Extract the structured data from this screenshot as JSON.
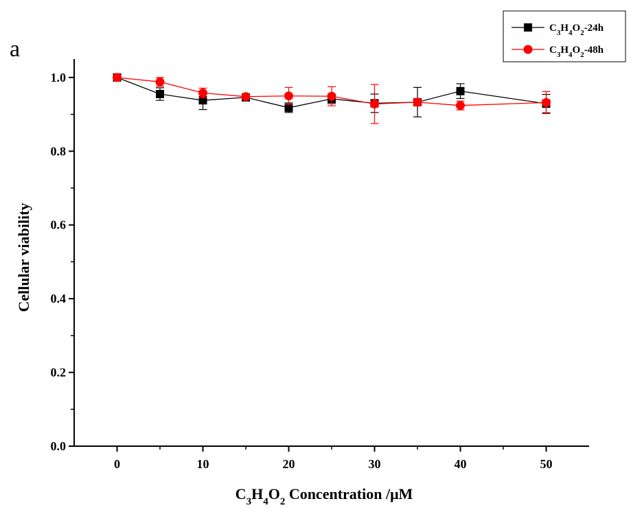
{
  "panel_label": "a",
  "chart_data": {
    "type": "line",
    "title": "",
    "xlabel": {
      "base": "C",
      "parts": [
        [
          "3",
          "H"
        ],
        [
          "4",
          "O"
        ],
        [
          "2",
          " Concentration /μM"
        ]
      ]
    },
    "ylabel": "Cellular viability",
    "xlim": [
      -5,
      55
    ],
    "ylim": [
      0.0,
      1.05
    ],
    "x_ticks": [
      0,
      10,
      20,
      30,
      40,
      50
    ],
    "x_tick_labels": [
      "0",
      "10",
      "20",
      "30",
      "40",
      "50"
    ],
    "y_ticks": [
      0.0,
      0.2,
      0.4,
      0.6,
      0.8,
      1.0
    ],
    "y_tick_labels": [
      "0.0",
      "0.2",
      "0.4",
      "0.6",
      "0.8",
      "1.0"
    ],
    "grid": false,
    "legend_position": "top-right",
    "series": [
      {
        "name": {
          "base": "C",
          "parts": [
            [
              "3",
              "H"
            ],
            [
              "4",
              "O"
            ],
            [
              "2",
              "-24h"
            ]
          ]
        },
        "color": "#000000",
        "marker": "square",
        "x": [
          0,
          5,
          10,
          15,
          20,
          25,
          30,
          35,
          40,
          50
        ],
        "y": [
          1.0,
          0.955,
          0.938,
          0.946,
          0.918,
          0.942,
          0.93,
          0.933,
          0.963,
          0.929
        ],
        "err": [
          0.0,
          0.017,
          0.025,
          0.008,
          0.013,
          0.013,
          0.025,
          0.04,
          0.02,
          0.025
        ]
      },
      {
        "name": {
          "base": "C",
          "parts": [
            [
              "3",
              "H"
            ],
            [
              "4",
              "O"
            ],
            [
              "2",
              "-48h"
            ]
          ]
        },
        "color": "#ff0000",
        "marker": "circle",
        "x": [
          0,
          5,
          10,
          15,
          20,
          25,
          30,
          35,
          40,
          50
        ],
        "y": [
          1.0,
          0.988,
          0.958,
          0.948,
          0.95,
          0.949,
          0.928,
          0.933,
          0.924,
          0.932
        ],
        "err": [
          0.0,
          0.012,
          0.013,
          0.005,
          0.023,
          0.026,
          0.053,
          0.01,
          0.012,
          0.03
        ]
      }
    ]
  }
}
